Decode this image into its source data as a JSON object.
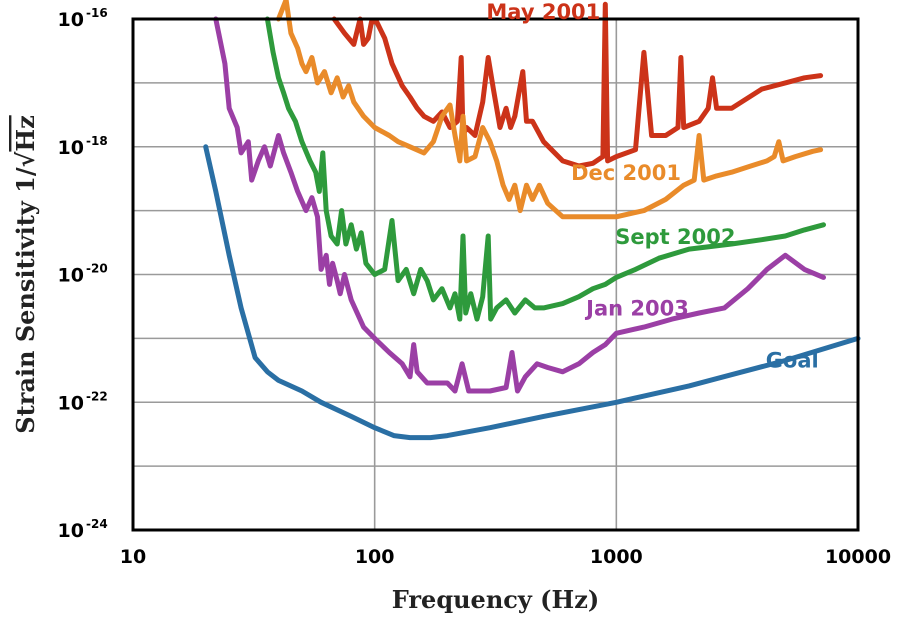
{
  "chart_data": {
    "type": "line",
    "x_scale": "log",
    "y_scale": "log",
    "xlim": [
      10,
      10000
    ],
    "ylim": [
      1e-24,
      1e-16
    ],
    "grid": true,
    "xlabel": "Frequency (Hz)",
    "ylabel_text": "Strain Sensitivity 1/",
    "ylabel_radical": "√",
    "ylabel_unit": "Hz",
    "xticks": [
      {
        "value": 10,
        "label": "10"
      },
      {
        "value": 100,
        "label": "100"
      },
      {
        "value": 1000,
        "label": "1000"
      },
      {
        "value": 10000,
        "label": "10000"
      }
    ],
    "yticks": [
      {
        "value": 1e-16,
        "base": "10",
        "exp": "-16"
      },
      {
        "value": 1e-18,
        "base": "10",
        "exp": "-18"
      },
      {
        "value": 1e-20,
        "base": "10",
        "exp": "-20"
      },
      {
        "value": 1e-22,
        "base": "10",
        "exp": "-22"
      },
      {
        "value": 1e-24,
        "base": "10",
        "exp": "-24"
      }
    ],
    "series": [
      {
        "name": "May 2001",
        "color": "#cc3319",
        "label_at": [
          290,
          1e-16
        ],
        "points": [
          [
            68,
            1e-16
          ],
          [
            75,
            6e-17
          ],
          [
            82,
            4e-17
          ],
          [
            87,
            1e-16
          ],
          [
            90,
            4e-17
          ],
          [
            94,
            5e-17
          ],
          [
            97,
            9e-17
          ],
          [
            102,
            9e-17
          ],
          [
            110,
            5e-17
          ],
          [
            118,
            2e-17
          ],
          [
            130,
            9e-18
          ],
          [
            140,
            6e-18
          ],
          [
            150,
            4e-18
          ],
          [
            160,
            3e-18
          ],
          [
            175,
            2.5e-18
          ],
          [
            190,
            3.5e-18
          ],
          [
            205,
            2e-18
          ],
          [
            220,
            2.5e-18
          ],
          [
            228,
            2.5e-17
          ],
          [
            232,
            1.5e-18
          ],
          [
            240,
            2e-18
          ],
          [
            260,
            1.5e-18
          ],
          [
            280,
            5e-18
          ],
          [
            295,
            2.5e-17
          ],
          [
            310,
            8e-18
          ],
          [
            330,
            2e-18
          ],
          [
            350,
            4e-18
          ],
          [
            365,
            2e-18
          ],
          [
            380,
            3e-18
          ],
          [
            400,
            9e-18
          ],
          [
            410,
            1.5e-17
          ],
          [
            425,
            2.5e-18
          ],
          [
            450,
            2.5e-18
          ],
          [
            500,
            1.2e-18
          ],
          [
            600,
            6e-19
          ],
          [
            700,
            5e-19
          ],
          [
            800,
            5.5e-19
          ],
          [
            880,
            7e-19
          ],
          [
            900,
            1.7e-16
          ],
          [
            920,
            6e-19
          ],
          [
            1000,
            7e-19
          ],
          [
            1200,
            9e-19
          ],
          [
            1300,
            3e-17
          ],
          [
            1400,
            1.5e-18
          ],
          [
            1600,
            1.5e-18
          ],
          [
            1800,
            2e-18
          ],
          [
            1850,
            2.5e-17
          ],
          [
            1900,
            2e-18
          ],
          [
            2200,
            2.5e-18
          ],
          [
            2400,
            4e-18
          ],
          [
            2500,
            1.2e-17
          ],
          [
            2600,
            4e-18
          ],
          [
            3000,
            4e-18
          ],
          [
            4000,
            8e-18
          ],
          [
            5000,
            1e-17
          ],
          [
            6000,
            1.2e-17
          ],
          [
            7000,
            1.3e-17
          ]
        ]
      },
      {
        "name": "Dec 2001",
        "color": "#e98b2a",
        "label_at": [
          650,
          3e-19
        ],
        "points": [
          [
            40,
            1e-16
          ],
          [
            43,
            2e-16
          ],
          [
            45,
            6e-17
          ],
          [
            48,
            3.5e-17
          ],
          [
            50,
            2e-17
          ],
          [
            52,
            1.5e-17
          ],
          [
            55,
            2.5e-17
          ],
          [
            58,
            1e-17
          ],
          [
            62,
            1.5e-17
          ],
          [
            66,
            7e-18
          ],
          [
            70,
            1.2e-17
          ],
          [
            74,
            6e-18
          ],
          [
            78,
            9e-18
          ],
          [
            82,
            5e-18
          ],
          [
            90,
            3e-18
          ],
          [
            100,
            2e-18
          ],
          [
            115,
            1.5e-18
          ],
          [
            125,
            1.2e-18
          ],
          [
            140,
            1e-18
          ],
          [
            160,
            8e-19
          ],
          [
            175,
            1.2e-18
          ],
          [
            190,
            3e-18
          ],
          [
            205,
            4.5e-18
          ],
          [
            215,
            1.5e-18
          ],
          [
            225,
            6e-19
          ],
          [
            232,
            3e-18
          ],
          [
            240,
            6e-19
          ],
          [
            260,
            7e-19
          ],
          [
            280,
            2e-18
          ],
          [
            300,
            1.2e-18
          ],
          [
            320,
            6e-19
          ],
          [
            340,
            2.5e-19
          ],
          [
            360,
            1.5e-19
          ],
          [
            380,
            2.5e-19
          ],
          [
            400,
            1e-19
          ],
          [
            425,
            2.5e-19
          ],
          [
            450,
            1.5e-19
          ],
          [
            480,
            2.5e-19
          ],
          [
            520,
            1.3e-19
          ],
          [
            600,
            8e-20
          ],
          [
            700,
            8e-20
          ],
          [
            800,
            8e-20
          ],
          [
            900,
            8e-20
          ],
          [
            1000,
            8e-20
          ],
          [
            1300,
            1e-19
          ],
          [
            1600,
            1.5e-19
          ],
          [
            1900,
            2.5e-19
          ],
          [
            2100,
            3e-19
          ],
          [
            2200,
            1.5e-18
          ],
          [
            2300,
            3e-19
          ],
          [
            2600,
            3.5e-19
          ],
          [
            3000,
            4e-19
          ],
          [
            3600,
            5e-19
          ],
          [
            4200,
            6e-19
          ],
          [
            4500,
            7e-19
          ],
          [
            4700,
            1.2e-18
          ],
          [
            4900,
            6e-19
          ],
          [
            5500,
            7e-19
          ],
          [
            6500,
            8.5e-19
          ],
          [
            7000,
            9e-19
          ]
        ]
      },
      {
        "name": "Sept 2002",
        "color": "#2e9a3c",
        "label_at": [
          990,
          3e-20
        ],
        "points": [
          [
            36,
            1e-16
          ],
          [
            38,
            3e-17
          ],
          [
            40,
            1.2e-17
          ],
          [
            42,
            7e-18
          ],
          [
            44,
            4e-18
          ],
          [
            47,
            2.5e-18
          ],
          [
            50,
            1.2e-18
          ],
          [
            54,
            6e-19
          ],
          [
            57,
            4e-19
          ],
          [
            59,
            2e-19
          ],
          [
            61,
            8e-19
          ],
          [
            63,
            1e-19
          ],
          [
            66,
            4e-20
          ],
          [
            70,
            3e-20
          ],
          [
            73,
            1e-19
          ],
          [
            76,
            3e-20
          ],
          [
            80,
            6e-20
          ],
          [
            84,
            2.5e-20
          ],
          [
            88,
            4.5e-20
          ],
          [
            92,
            1.5e-20
          ],
          [
            100,
            1e-20
          ],
          [
            110,
            1.2e-20
          ],
          [
            118,
            7e-20
          ],
          [
            125,
            8e-21
          ],
          [
            135,
            1.2e-20
          ],
          [
            145,
            5e-21
          ],
          [
            155,
            1.2e-20
          ],
          [
            165,
            8e-21
          ],
          [
            175,
            4e-21
          ],
          [
            190,
            6e-21
          ],
          [
            205,
            3e-21
          ],
          [
            215,
            5e-21
          ],
          [
            225,
            2e-21
          ],
          [
            232,
            4e-20
          ],
          [
            238,
            2.5e-21
          ],
          [
            250,
            5e-21
          ],
          [
            265,
            2e-21
          ],
          [
            280,
            4.5e-21
          ],
          [
            295,
            4e-20
          ],
          [
            302,
            2e-21
          ],
          [
            320,
            3e-21
          ],
          [
            350,
            4e-21
          ],
          [
            380,
            2.5e-21
          ],
          [
            420,
            4e-21
          ],
          [
            460,
            3e-21
          ],
          [
            500,
            3e-21
          ],
          [
            600,
            3.5e-21
          ],
          [
            700,
            4.5e-21
          ],
          [
            800,
            6e-21
          ],
          [
            900,
            7e-21
          ],
          [
            1000,
            9e-21
          ],
          [
            1200,
            1.2e-20
          ],
          [
            1500,
            1.8e-20
          ],
          [
            2000,
            2.5e-20
          ],
          [
            3000,
            3e-20
          ],
          [
            4000,
            3.5e-20
          ],
          [
            5000,
            4e-20
          ],
          [
            6000,
            5e-20
          ],
          [
            7200,
            6e-20
          ]
        ]
      },
      {
        "name": "Jan 2003",
        "color": "#9b3fa5",
        "label_at": [
          750,
          2.3e-21
        ],
        "points": [
          [
            22,
            1e-16
          ],
          [
            24,
            2e-17
          ],
          [
            25,
            4e-18
          ],
          [
            27,
            2e-18
          ],
          [
            28,
            8e-19
          ],
          [
            30,
            1.2e-18
          ],
          [
            31,
            3e-19
          ],
          [
            33,
            6e-19
          ],
          [
            35,
            1e-18
          ],
          [
            37,
            5e-19
          ],
          [
            40,
            1.5e-18
          ],
          [
            42,
            8e-19
          ],
          [
            45,
            4e-19
          ],
          [
            48,
            2e-19
          ],
          [
            52,
            1e-19
          ],
          [
            55,
            1.6e-19
          ],
          [
            58,
            8e-20
          ],
          [
            60,
            1.2e-20
          ],
          [
            63,
            2e-20
          ],
          [
            65,
            7e-21
          ],
          [
            67,
            1.5e-20
          ],
          [
            70,
            8e-21
          ],
          [
            72,
            5e-21
          ],
          [
            75,
            1e-20
          ],
          [
            80,
            4e-21
          ],
          [
            90,
            1.5e-21
          ],
          [
            100,
            1e-21
          ],
          [
            115,
            6e-22
          ],
          [
            130,
            4e-22
          ],
          [
            140,
            2.5e-22
          ],
          [
            145,
            8e-22
          ],
          [
            150,
            3e-22
          ],
          [
            165,
            2e-22
          ],
          [
            200,
            2e-22
          ],
          [
            215,
            1.5e-22
          ],
          [
            230,
            4e-22
          ],
          [
            245,
            1.5e-22
          ],
          [
            270,
            1.5e-22
          ],
          [
            300,
            1.5e-22
          ],
          [
            350,
            1.7e-22
          ],
          [
            370,
            6e-22
          ],
          [
            390,
            1.5e-22
          ],
          [
            420,
            2.5e-22
          ],
          [
            470,
            4e-22
          ],
          [
            520,
            3.5e-22
          ],
          [
            600,
            3e-22
          ],
          [
            700,
            4e-22
          ],
          [
            800,
            6e-22
          ],
          [
            900,
            8e-22
          ],
          [
            1000,
            1.2e-21
          ],
          [
            1300,
            1.5e-21
          ],
          [
            1700,
            2e-21
          ],
          [
            2200,
            2.5e-21
          ],
          [
            2800,
            3e-21
          ],
          [
            3500,
            6e-21
          ],
          [
            4200,
            1.2e-20
          ],
          [
            5000,
            2e-20
          ],
          [
            6000,
            1.2e-20
          ],
          [
            7200,
            9e-21
          ]
        ]
      },
      {
        "name": "Goal",
        "color": "#2a6fa4",
        "label_at": [
          4150,
          3.5e-22
        ],
        "points": [
          [
            20,
            1e-18
          ],
          [
            22,
            2e-19
          ],
          [
            25,
            2e-20
          ],
          [
            28,
            3e-21
          ],
          [
            32,
            5e-22
          ],
          [
            36,
            3e-22
          ],
          [
            40,
            2.2e-22
          ],
          [
            50,
            1.5e-22
          ],
          [
            60,
            1e-22
          ],
          [
            80,
            6e-23
          ],
          [
            100,
            4e-23
          ],
          [
            120,
            3e-23
          ],
          [
            140,
            2.8e-23
          ],
          [
            170,
            2.8e-23
          ],
          [
            200,
            3e-23
          ],
          [
            300,
            4e-23
          ],
          [
            500,
            6e-23
          ],
          [
            1000,
            1e-22
          ],
          [
            2000,
            1.8e-22
          ],
          [
            5000,
            4.5e-22
          ],
          [
            10000,
            1e-21
          ]
        ]
      }
    ]
  }
}
